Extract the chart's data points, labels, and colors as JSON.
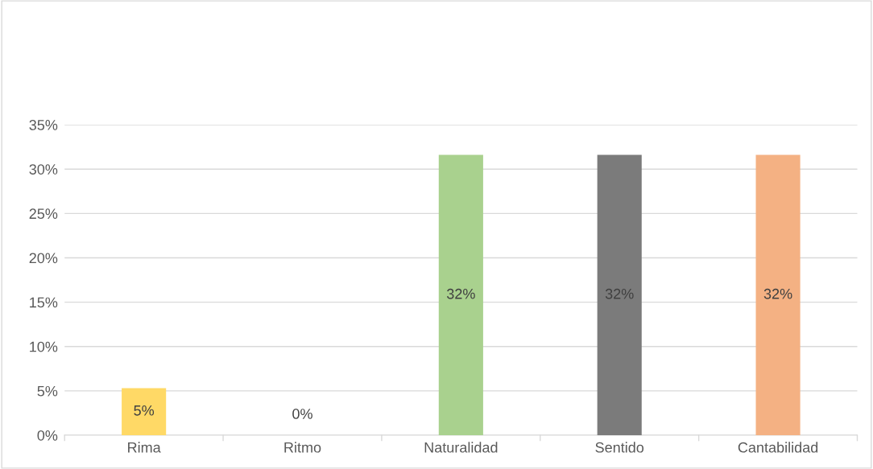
{
  "chart_data": {
    "type": "bar",
    "categories": [
      "Rima",
      "Ritmo",
      "Naturalidad",
      "Sentido",
      "Cantabilidad"
    ],
    "values": [
      5.3,
      0,
      31.6,
      31.6,
      31.6
    ],
    "value_labels": [
      "5%",
      "0%",
      "32%",
      "32%",
      "32%"
    ],
    "colors": [
      "#ffd966",
      "#5b9bd5",
      "#a9d18e",
      "#7b7b7b",
      "#f4b183"
    ],
    "ylim": [
      0,
      35
    ],
    "yticks": [
      {
        "value": 0,
        "label": "0%"
      },
      {
        "value": 5,
        "label": "5%"
      },
      {
        "value": 10,
        "label": "10%"
      },
      {
        "value": 15,
        "label": "15%"
      },
      {
        "value": 20,
        "label": "20%"
      },
      {
        "value": 25,
        "label": "25%"
      },
      {
        "value": 30,
        "label": "30%"
      },
      {
        "value": 35,
        "label": "35%"
      }
    ],
    "grid": "y",
    "legend": false
  }
}
